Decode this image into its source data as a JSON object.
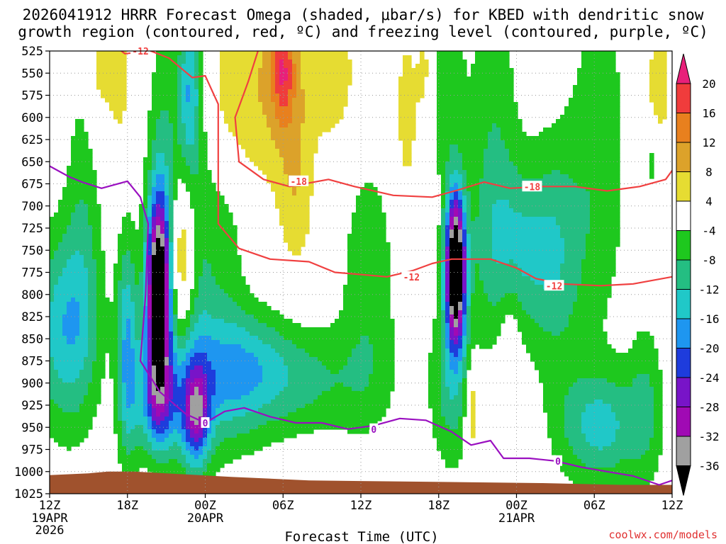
{
  "chart_data": {
    "type": "heatmap",
    "title_line1": "2026041912 HRRR Forecast Omega (shaded, μbar/s) for KBED with dendritic snow",
    "title_line2": "growth region (contoured, red, ºC) and freezing level (contoured, purple, ºC)",
    "xlabel": "Forecast Time (UTC)",
    "credit": "coolwx.com/models",
    "x_hours_range": [
      0,
      48
    ],
    "y_pressure_range": [
      1025,
      525
    ],
    "x_ticks": [
      {
        "hour": 0,
        "label": "12Z",
        "date": "19APR",
        "year": "2026"
      },
      {
        "hour": 6,
        "label": "18Z"
      },
      {
        "hour": 12,
        "label": "00Z",
        "date": "20APR"
      },
      {
        "hour": 18,
        "label": "06Z"
      },
      {
        "hour": 24,
        "label": "12Z"
      },
      {
        "hour": 30,
        "label": "18Z"
      },
      {
        "hour": 36,
        "label": "00Z",
        "date": "21APR"
      },
      {
        "hour": 42,
        "label": "06Z"
      },
      {
        "hour": 48,
        "label": "12Z"
      }
    ],
    "y_ticks": [
      525,
      550,
      575,
      600,
      625,
      650,
      675,
      700,
      725,
      750,
      775,
      800,
      825,
      850,
      875,
      900,
      925,
      950,
      975,
      1000,
      1025
    ],
    "colorbar": {
      "labels": [
        "20",
        "16",
        "12",
        "8",
        "4",
        "-4",
        "-8",
        "-12",
        "-16",
        "-20",
        "-24",
        "-28",
        "-32",
        "-36"
      ],
      "bins": [
        {
          "lo": 20,
          "hi": 24,
          "color": "#e8207a"
        },
        {
          "lo": 16,
          "hi": 20,
          "color": "#f03c3c"
        },
        {
          "lo": 12,
          "hi": 16,
          "color": "#e8801e"
        },
        {
          "lo": 8,
          "hi": 12,
          "color": "#dca22a"
        },
        {
          "lo": 4,
          "hi": 8,
          "color": "#e6dc32"
        },
        {
          "lo": -4,
          "hi": 4,
          "color": "#ffffff"
        },
        {
          "lo": -8,
          "hi": -4,
          "color": "#1ec81e"
        },
        {
          "lo": -12,
          "hi": -8,
          "color": "#24be82"
        },
        {
          "lo": -16,
          "hi": -12,
          "color": "#20c8c8"
        },
        {
          "lo": -20,
          "hi": -16,
          "color": "#1e96f0"
        },
        {
          "lo": -24,
          "hi": -20,
          "color": "#1e3cdc"
        },
        {
          "lo": -28,
          "hi": -24,
          "color": "#7814c8"
        },
        {
          "lo": -32,
          "hi": -28,
          "color": "#a00ab4"
        },
        {
          "lo": -36,
          "hi": -32,
          "color": "#a0a0a0"
        },
        {
          "lo": -40,
          "hi": -36,
          "color": "#000000"
        }
      ]
    },
    "omega_features": [
      {
        "x": 2.6,
        "p": 700,
        "sx": 1.0,
        "sy": 130,
        "amp": -6
      },
      {
        "x": 1.2,
        "p": 840,
        "sx": 1.8,
        "sy": 80,
        "amp": -15
      },
      {
        "x": 6.0,
        "p": 860,
        "sx": 0.6,
        "sy": 90,
        "amp": -16
      },
      {
        "x": 8.4,
        "p": 800,
        "sx": 0.65,
        "sy": 75,
        "amp": -45
      },
      {
        "x": 8.4,
        "p": 920,
        "sx": 1.3,
        "sy": 45,
        "amp": -18
      },
      {
        "x": 8.8,
        "p": 650,
        "sx": 0.9,
        "sy": 120,
        "amp": -8
      },
      {
        "x": 10.8,
        "p": 570,
        "sx": 0.6,
        "sy": 60,
        "amp": -12
      },
      {
        "x": 11.2,
        "p": 760,
        "sx": 1.0,
        "sy": 300,
        "amp": -7
      },
      {
        "x": 11.3,
        "p": 935,
        "sx": 0.7,
        "sy": 35,
        "amp": -19
      },
      {
        "x": 13.5,
        "p": 720,
        "sx": 1.3,
        "sy": 80,
        "amp": -7
      },
      {
        "x": 13.0,
        "p": 900,
        "sx": 2.5,
        "sy": 60,
        "amp": -10
      },
      {
        "x": 15.5,
        "p": 880,
        "sx": 3.0,
        "sy": 45,
        "amp": -8
      },
      {
        "x": 20.0,
        "p": 900,
        "sx": 4.0,
        "sy": 45,
        "amp": -7
      },
      {
        "x": 24.6,
        "p": 790,
        "sx": 1.6,
        "sy": 110,
        "amp": -7
      },
      {
        "x": 30.5,
        "p": 560,
        "sx": 1.0,
        "sy": 90,
        "amp": -7
      },
      {
        "x": 31.3,
        "p": 770,
        "sx": 0.55,
        "sy": 60,
        "amp": -45
      },
      {
        "x": 31.0,
        "p": 900,
        "sx": 1.2,
        "sy": 70,
        "amp": -10
      },
      {
        "x": 34.2,
        "p": 620,
        "sx": 1.4,
        "sy": 150,
        "amp": -7
      },
      {
        "x": 36.3,
        "p": 750,
        "sx": 2.4,
        "sy": 70,
        "amp": -11
      },
      {
        "x": 39.3,
        "p": 760,
        "sx": 1.5,
        "sy": 120,
        "amp": -7
      },
      {
        "x": 42.5,
        "p": 640,
        "sx": 1.5,
        "sy": 150,
        "amp": -7
      },
      {
        "x": 42.5,
        "p": 950,
        "sx": 2.2,
        "sy": 45,
        "amp": -13
      },
      {
        "x": 46.0,
        "p": 920,
        "sx": 1.0,
        "sy": 70,
        "amp": -7
      },
      {
        "x": 46.4,
        "p": 650,
        "sx": 0.4,
        "sy": 25,
        "amp": -6
      },
      {
        "x": 5.4,
        "p": 560,
        "sx": 0.6,
        "sy": 50,
        "amp": 6
      },
      {
        "x": 10.2,
        "p": 760,
        "sx": 0.7,
        "sy": 60,
        "amp": 13
      },
      {
        "x": 14.0,
        "p": 580,
        "sx": 1.8,
        "sy": 90,
        "amp": 7
      },
      {
        "x": 18.0,
        "p": 560,
        "sx": 1.8,
        "sy": 80,
        "amp": 8
      },
      {
        "x": 18.0,
        "p": 545,
        "sx": 0.6,
        "sy": 40,
        "amp": 12
      },
      {
        "x": 19.0,
        "p": 690,
        "sx": 1.0,
        "sy": 70,
        "amp": 6
      },
      {
        "x": 22.0,
        "p": 555,
        "sx": 1.2,
        "sy": 50,
        "amp": 7
      },
      {
        "x": 27.5,
        "p": 600,
        "sx": 0.7,
        "sy": 80,
        "amp": 6
      },
      {
        "x": 29.0,
        "p": 545,
        "sx": 0.5,
        "sy": 50,
        "amp": 6
      },
      {
        "x": 3.8,
        "p": 550,
        "sx": 0.7,
        "sy": 50,
        "amp": 6
      },
      {
        "x": 35.5,
        "p": 880,
        "sx": 0.6,
        "sy": 70,
        "amp": 6
      },
      {
        "x": 47.0,
        "p": 560,
        "sx": 0.8,
        "sy": 60,
        "amp": 6
      },
      {
        "x": 32.6,
        "p": 930,
        "sx": 0.4,
        "sy": 40,
        "amp": 10
      }
    ],
    "dgz_minus12": [
      [
        4.4,
        512
      ],
      [
        5.8,
        528
      ],
      [
        7.8,
        525
      ],
      [
        9.2,
        533
      ],
      [
        11.0,
        555
      ],
      [
        12.0,
        553
      ],
      [
        13.0,
        585
      ],
      [
        13.0,
        640
      ],
      [
        13.0,
        720
      ],
      [
        14.6,
        748
      ],
      [
        17.0,
        760
      ],
      [
        20.0,
        763
      ],
      [
        22.0,
        775
      ],
      [
        24.5,
        778
      ],
      [
        26.0,
        780
      ],
      [
        28.0,
        773
      ],
      [
        29.5,
        765
      ],
      [
        31.0,
        760
      ],
      [
        34.0,
        760
      ],
      [
        36.0,
        770
      ],
      [
        37.5,
        782
      ],
      [
        39.5,
        788
      ],
      [
        42.5,
        790
      ],
      [
        45.0,
        788
      ],
      [
        48.0,
        780
      ]
    ],
    "dgz_minus12_labels": [
      {
        "hour": 7.0,
        "p": 525,
        "text": "-12"
      },
      {
        "hour": 27.9,
        "p": 780,
        "text": "-12"
      },
      {
        "hour": 38.9,
        "p": 790,
        "text": "-12"
      }
    ],
    "dgz_minus18": [
      [
        16.3,
        514
      ],
      [
        15.3,
        560
      ],
      [
        14.3,
        600
      ],
      [
        14.6,
        650
      ],
      [
        16.5,
        670
      ],
      [
        18.5,
        678
      ],
      [
        21.5,
        670
      ],
      [
        23.5,
        678
      ],
      [
        26.5,
        688
      ],
      [
        29.5,
        690
      ],
      [
        31.5,
        682
      ],
      [
        33.5,
        673
      ],
      [
        35.5,
        680
      ],
      [
        38.0,
        678
      ],
      [
        40.5,
        678
      ],
      [
        43.0,
        683
      ],
      [
        45.5,
        678
      ],
      [
        47.5,
        670
      ],
      [
        48.0,
        660
      ]
    ],
    "dgz_minus18_labels": [
      {
        "hour": 19.2,
        "p": 672,
        "text": "-18"
      },
      {
        "hour": 37.2,
        "p": 678,
        "text": "-18"
      }
    ],
    "freezing_0": [
      [
        0.0,
        655
      ],
      [
        1.5,
        667
      ],
      [
        2.5,
        673
      ],
      [
        4.0,
        680
      ],
      [
        6.0,
        672
      ],
      [
        7.0,
        690
      ],
      [
        7.6,
        720
      ],
      [
        7.4,
        800
      ],
      [
        7.0,
        875
      ],
      [
        8.5,
        910
      ],
      [
        10.5,
        935
      ],
      [
        12.0,
        945
      ],
      [
        13.5,
        932
      ],
      [
        15.0,
        928
      ],
      [
        17.0,
        938
      ],
      [
        19.0,
        945
      ],
      [
        21.0,
        945
      ],
      [
        23.0,
        952
      ],
      [
        25.0,
        948
      ],
      [
        27.0,
        940
      ],
      [
        29.0,
        942
      ],
      [
        31.0,
        955
      ],
      [
        32.5,
        970
      ],
      [
        34.0,
        965
      ],
      [
        35.0,
        985
      ],
      [
        37.0,
        985
      ],
      [
        39.0,
        988
      ],
      [
        41.0,
        995
      ],
      [
        43.0,
        1000
      ],
      [
        45.0,
        1005
      ],
      [
        47.0,
        1015
      ],
      [
        48.0,
        1010
      ]
    ],
    "freezing_0_labels": [
      {
        "hour": 12.0,
        "p": 945,
        "text": "0"
      },
      {
        "hour": 25.0,
        "p": 952,
        "text": "0"
      },
      {
        "hour": 39.2,
        "p": 988,
        "text": "0"
      }
    ],
    "terrain_surface": [
      [
        0.0,
        1004
      ],
      [
        3.0,
        1002
      ],
      [
        4.5,
        1000
      ],
      [
        6.5,
        1000
      ],
      [
        9.0,
        1002
      ],
      [
        14.0,
        1006
      ],
      [
        20.0,
        1010
      ],
      [
        26.0,
        1011
      ],
      [
        32.0,
        1012
      ],
      [
        38.0,
        1013
      ],
      [
        44.0,
        1015
      ],
      [
        48.0,
        1015
      ]
    ]
  },
  "colors": {
    "dgz_line": "#f04040",
    "freezing_line": "#9a10c0",
    "terrain": "#a0522d",
    "credit": "#e03030",
    "grid": "#999999"
  }
}
